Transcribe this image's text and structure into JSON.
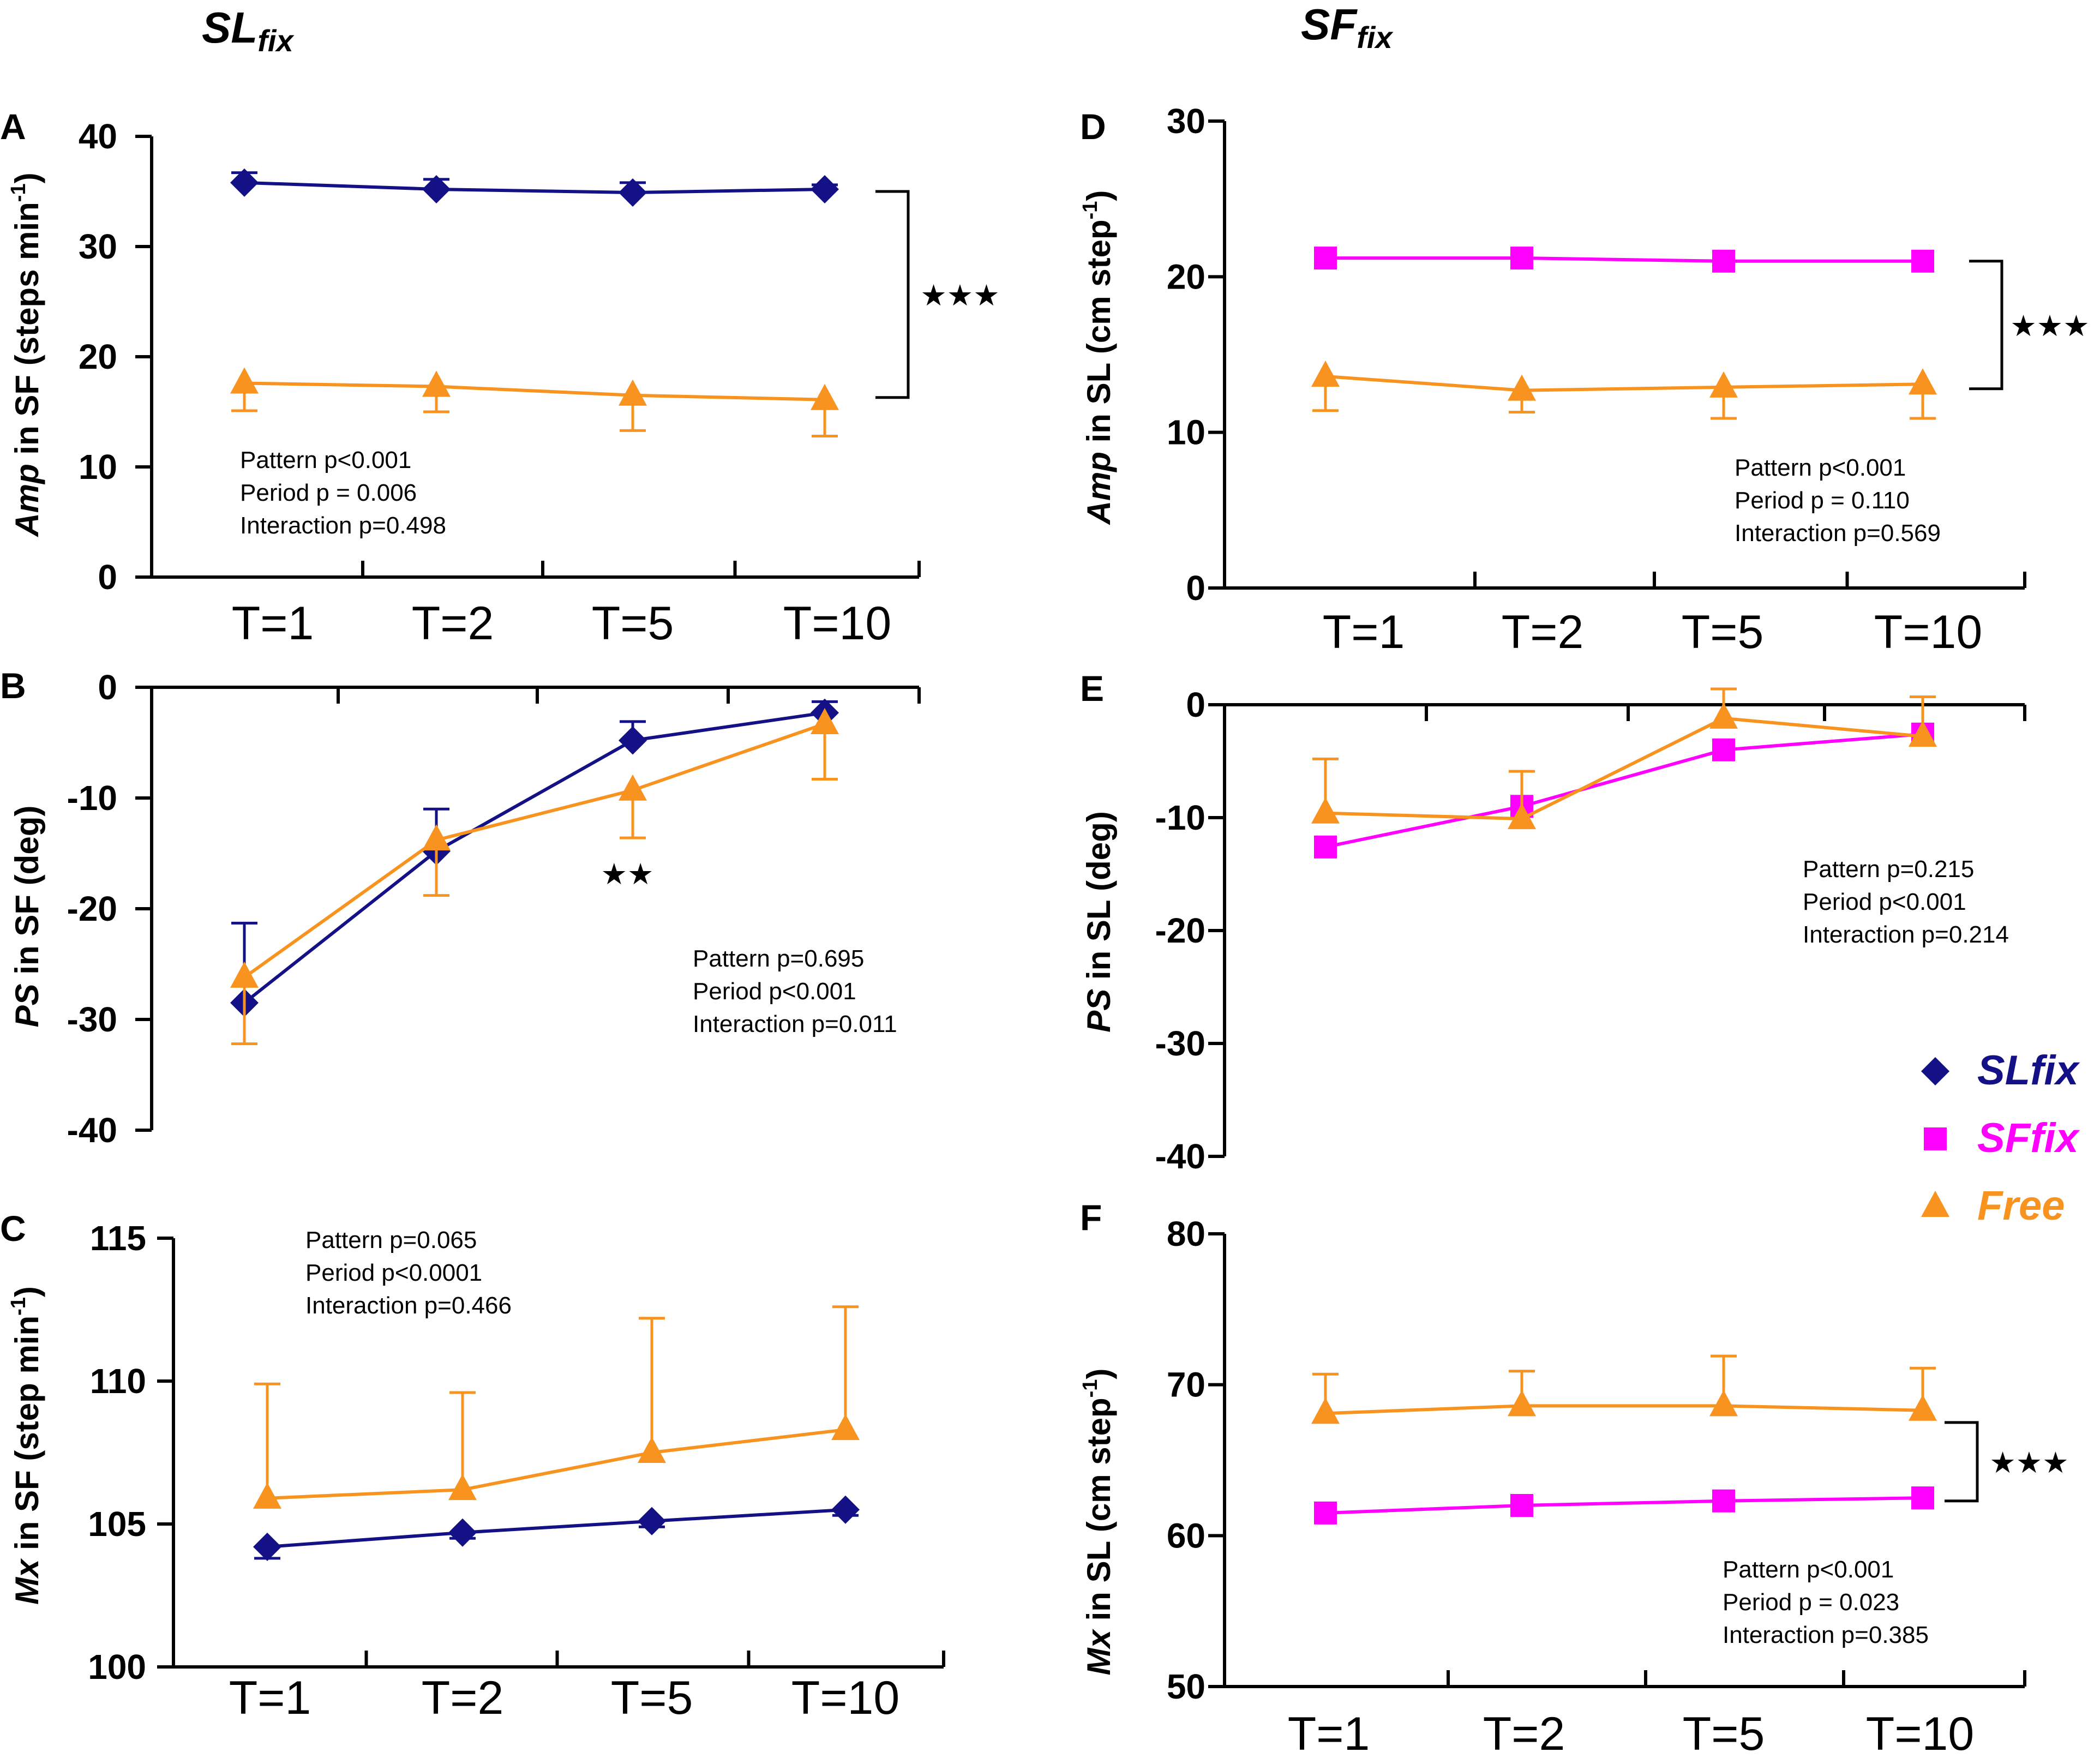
{
  "figure": {
    "column_titles": [
      {
        "main": "SL",
        "sub": "fix"
      },
      {
        "main": "SF",
        "sub": "fix"
      }
    ],
    "legend": [
      {
        "label": "SLfix",
        "marker": "diamond",
        "color": "#131185"
      },
      {
        "label": "SFfix",
        "marker": "square",
        "color": "#FF00FF"
      },
      {
        "label": "Free",
        "marker": "triangle",
        "color": "#F7931E"
      }
    ]
  },
  "chart_data": [
    {
      "panel": "A",
      "type": "line",
      "ylabel_italic": "Amp",
      "ylabel": " in SF (steps min",
      "ylabel_sup": "-1",
      "ylabel_end": ")",
      "categories": [
        "T=1",
        "T=2",
        "T=5",
        "T=10"
      ],
      "ylim": [
        0,
        40
      ],
      "yticks": [
        0,
        10,
        20,
        30,
        40
      ],
      "series": [
        {
          "name": "SLfix",
          "values": [
            35.8,
            35.2,
            34.9,
            35.2
          ],
          "err": [
            0.9,
            0.9,
            0.9,
            0.4
          ],
          "err_dir": "up"
        },
        {
          "name": "Free",
          "values": [
            17.6,
            17.3,
            16.5,
            16.1
          ],
          "err": [
            2.5,
            2.3,
            3.2,
            3.3
          ],
          "err_dir": "down"
        }
      ],
      "stats": [
        "Pattern p<0.001",
        "Period  p = 0.006",
        "Interaction p=0.498"
      ],
      "significance": {
        "text": "★★★",
        "kind": "bracket",
        "from": 35.0,
        "to": 16.3
      }
    },
    {
      "panel": "B",
      "type": "line",
      "ylabel_italic": "PS",
      "ylabel": " in SF  (deg)",
      "ylabel_sup": "",
      "ylabel_end": "",
      "categories": [
        "T=1",
        "T=2",
        "T=5",
        "T=10"
      ],
      "ylim": [
        -40,
        0
      ],
      "yticks": [
        0,
        -10,
        -20,
        -30,
        -40
      ],
      "series": [
        {
          "name": "SLfix",
          "values": [
            -28.5,
            -14.8,
            -4.8,
            -2.3
          ],
          "err": [
            7.2,
            3.8,
            1.7,
            1.0
          ],
          "err_dir": "up"
        },
        {
          "name": "Free",
          "values": [
            -26.2,
            -13.8,
            -9.3,
            -3.3
          ],
          "err": [
            6.0,
            5.0,
            4.3,
            5.0
          ],
          "err_dir": "down"
        }
      ],
      "stats": [
        "Pattern p=0.695",
        "Period  p<0.001",
        "Interaction p=0.011"
      ],
      "significance": {
        "text": "★★",
        "kind": "point",
        "category": 2,
        "value": -16.8
      }
    },
    {
      "panel": "C",
      "type": "line",
      "ylabel_italic": "Mx",
      "ylabel": " in SF (step min",
      "ylabel_sup": "-1",
      "ylabel_end": ")",
      "categories": [
        "T=1",
        "T=2",
        "T=5",
        "T=10"
      ],
      "ylim": [
        100,
        115
      ],
      "yticks": [
        100,
        105,
        110,
        115
      ],
      "series": [
        {
          "name": "SLfix",
          "values": [
            104.2,
            104.7,
            105.1,
            105.5
          ],
          "err": [
            0.4,
            0.2,
            0.2,
            0.2
          ],
          "err_dir": "down"
        },
        {
          "name": "Free",
          "values": [
            105.9,
            106.2,
            107.5,
            108.3
          ],
          "err": [
            4.0,
            3.4,
            4.7,
            4.3
          ],
          "err_dir": "up"
        }
      ],
      "stats": [
        "Pattern p=0.065",
        "Period  p<0.0001",
        "Interaction p=0.466"
      ],
      "significance": null
    },
    {
      "panel": "D",
      "type": "line",
      "ylabel_italic": "Amp",
      "ylabel": " in SL (cm step",
      "ylabel_sup": "-1",
      "ylabel_end": ")",
      "categories": [
        "T=1",
        "T=2",
        "T=5",
        "T=10"
      ],
      "ylim": [
        0,
        30
      ],
      "yticks": [
        0,
        10,
        20,
        30
      ],
      "series": [
        {
          "name": "SFfix",
          "values": [
            21.2,
            21.2,
            21.0,
            21.0
          ],
          "err": [
            0,
            0,
            0,
            0
          ],
          "err_dir": "up"
        },
        {
          "name": "Free",
          "values": [
            13.6,
            12.7,
            12.9,
            13.1
          ],
          "err": [
            2.2,
            1.4,
            2.0,
            2.2
          ],
          "err_dir": "down"
        }
      ],
      "stats": [
        "Pattern p<0.001",
        "Period  p = 0.110",
        "Interaction p=0.569"
      ],
      "significance": {
        "text": "★★★",
        "kind": "bracket",
        "from": 21.0,
        "to": 12.8
      }
    },
    {
      "panel": "E",
      "type": "line",
      "ylabel_italic": "PS",
      "ylabel": " in SL (deg)",
      "ylabel_sup": "",
      "ylabel_end": "",
      "categories": [
        "T=1",
        "T=2",
        "T=5",
        "T=10"
      ],
      "ylim": [
        -40,
        0
      ],
      "yticks": [
        0,
        -10,
        -20,
        -30,
        -40
      ],
      "series": [
        {
          "name": "SFfix",
          "values": [
            -12.6,
            -9.0,
            -4.0,
            -2.6
          ],
          "err": [
            0,
            0,
            0,
            0
          ],
          "err_dir": "up"
        },
        {
          "name": "Free",
          "values": [
            -9.6,
            -10.1,
            -1.2,
            -2.8
          ],
          "err": [
            4.8,
            4.2,
            2.6,
            3.5
          ],
          "err_dir": "up"
        }
      ],
      "stats": [
        "Pattern p=0.215",
        "Period  p<0.001",
        "Interaction p=0.214"
      ],
      "significance": null
    },
    {
      "panel": "F",
      "type": "line",
      "ylabel_italic": "Mx",
      "ylabel": " in SL (cm step",
      "ylabel_sup": "-1",
      "ylabel_end": ")",
      "categories": [
        "T=1",
        "T=2",
        "T=5",
        "T=10"
      ],
      "ylim": [
        50,
        80
      ],
      "yticks": [
        50,
        60,
        70,
        80
      ],
      "series": [
        {
          "name": "SFfix",
          "values": [
            61.5,
            62.0,
            62.3,
            62.5
          ],
          "err": [
            0,
            0,
            0,
            0
          ],
          "err_dir": "up"
        },
        {
          "name": "Free",
          "values": [
            68.1,
            68.6,
            68.6,
            68.3
          ],
          "err": [
            2.6,
            2.3,
            3.3,
            2.8
          ],
          "err_dir": "up"
        }
      ],
      "stats": [
        "Pattern p<0.001",
        "Period  p = 0.023",
        "Interaction p=0.385"
      ],
      "significance": {
        "text": "★★★",
        "kind": "bracket",
        "from": 67.5,
        "to": 62.3
      }
    }
  ]
}
